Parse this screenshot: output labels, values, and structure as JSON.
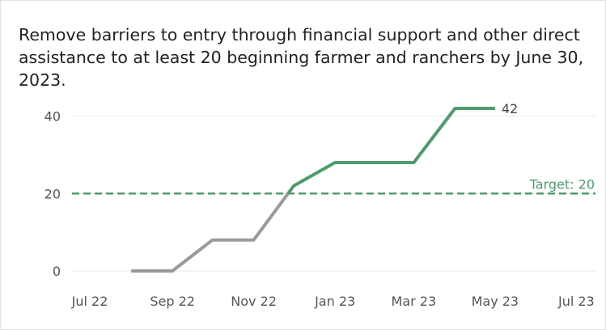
{
  "colors": {
    "green": "#4e9c6d",
    "gray": "#9a9a9a",
    "grid": "#e9e9e9",
    "target": "#4e9c6d"
  },
  "chart_data": {
    "type": "line",
    "title": "Remove barriers to entry through financial support and other direct assistance to at least 20 beginning farmer and ranchers by June 30, 2023.",
    "xlabel": "",
    "ylabel": "",
    "ylim": [
      0,
      42
    ],
    "xlim": [
      "2022-06-01",
      "2023-08-01"
    ],
    "y_ticks": [
      0,
      20,
      40
    ],
    "x_ticks": [
      {
        "date": "2022-07-01",
        "label": "Jul 22"
      },
      {
        "date": "2022-09-01",
        "label": "Sep 22"
      },
      {
        "date": "2022-11-01",
        "label": "Nov 22"
      },
      {
        "date": "2023-01-01",
        "label": "Jan 23"
      },
      {
        "date": "2023-03-01",
        "label": "Mar 23"
      },
      {
        "date": "2023-05-01",
        "label": "May 23"
      },
      {
        "date": "2023-07-01",
        "label": "Jul 23"
      }
    ],
    "grid": true,
    "series": [
      {
        "x": [
          "2022-08-01",
          "2022-09-01",
          "2022-10-01",
          "2022-11-01",
          "2022-12-01",
          "2023-01-01",
          "2023-02-01",
          "2023-03-01",
          "2023-04-01",
          "2023-05-01"
        ],
        "y": [
          0,
          0,
          8,
          8,
          22,
          28,
          28,
          28,
          42,
          42
        ]
      }
    ],
    "target": {
      "value": 20,
      "label": "Target: 20"
    },
    "end_label": "42"
  }
}
